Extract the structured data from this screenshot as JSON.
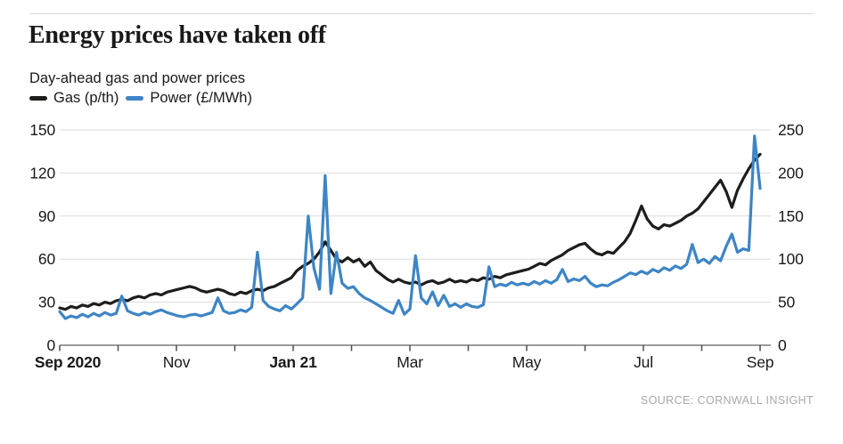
{
  "header": {
    "title": "Energy prices have taken off",
    "subtitle": "Day-ahead gas and power prices",
    "legend": [
      {
        "label": "Gas (p/th)",
        "color": "#1d1d1b"
      },
      {
        "label": "Power (£/MWh)",
        "color": "#3d85c6"
      }
    ]
  },
  "source": "SOURCE: CORNWALL INSIGHT",
  "chart_data": {
    "type": "line",
    "title": "Energy prices have taken off",
    "subtitle": "Day-ahead gas and power prices",
    "grid": "horizontal",
    "legend_position": "top-left",
    "x": {
      "n_months": 12,
      "range": [
        "Sep 2020",
        "Sep 2021"
      ],
      "tick_labels": [
        {
          "pos": 0,
          "label": "Sep 2020",
          "bold": true
        },
        {
          "pos": 2,
          "label": "Nov"
        },
        {
          "pos": 4,
          "label": "Jan 21",
          "bold": true
        },
        {
          "pos": 6,
          "label": "Mar"
        },
        {
          "pos": 8,
          "label": "May"
        },
        {
          "pos": 10,
          "label": "Jul"
        },
        {
          "pos": 12,
          "label": "Sep"
        }
      ]
    },
    "y_left": {
      "label": "Gas (p/th)",
      "ticks": [
        0,
        30,
        60,
        90,
        120,
        150
      ],
      "max": 150
    },
    "y_right": {
      "label": "Power (£/MWh)",
      "ticks": [
        0,
        50,
        100,
        150,
        200,
        250
      ],
      "max": 250
    },
    "series": [
      {
        "name": "Gas (p/th)",
        "axis": "left",
        "color": "#1d1d1b",
        "values": [
          26,
          25,
          27,
          26,
          28,
          27,
          29,
          28,
          30,
          29,
          31,
          32,
          31,
          33,
          34,
          33,
          35,
          36,
          35,
          37,
          38,
          39,
          40,
          41,
          40,
          38,
          37,
          38,
          39,
          38,
          36,
          35,
          37,
          36,
          38,
          39,
          38,
          40,
          41,
          43,
          45,
          47,
          52,
          55,
          57,
          60,
          65,
          72,
          66,
          60,
          58,
          61,
          58,
          60,
          55,
          58,
          52,
          49,
          46,
          44,
          46,
          44,
          43,
          44,
          42,
          44,
          45,
          43,
          44,
          46,
          44,
          45,
          44,
          46,
          45,
          47,
          46,
          48,
          47,
          49,
          50,
          51,
          52,
          53,
          55,
          57,
          56,
          59,
          61,
          63,
          66,
          68,
          70,
          71,
          67,
          64,
          63,
          65,
          64,
          68,
          72,
          78,
          87,
          97,
          88,
          83,
          81,
          84,
          83,
          85,
          87,
          90,
          92,
          95,
          100,
          105,
          110,
          115,
          107,
          96,
          108,
          116,
          123,
          129,
          133
        ]
      },
      {
        "name": "Power (£/MWh)",
        "axis": "right",
        "color": "#3d85c6",
        "values": [
          39,
          31,
          34,
          32,
          36,
          33,
          37,
          34,
          38,
          35,
          37,
          57,
          40,
          37,
          35,
          38,
          36,
          39,
          41,
          38,
          36,
          34,
          33,
          35,
          36,
          34,
          36,
          38,
          55,
          40,
          37,
          38,
          41,
          39,
          44,
          108,
          52,
          45,
          42,
          40,
          46,
          42,
          48,
          55,
          150,
          90,
          65,
          197,
          60,
          108,
          72,
          66,
          68,
          60,
          55,
          52,
          48,
          44,
          40,
          37,
          52,
          36,
          42,
          104,
          55,
          48,
          62,
          46,
          58,
          45,
          48,
          44,
          48,
          45,
          44,
          47,
          91,
          68,
          71,
          69,
          73,
          70,
          72,
          70,
          74,
          71,
          75,
          72,
          76,
          88,
          74,
          77,
          75,
          80,
          72,
          68,
          70,
          69,
          73,
          76,
          80,
          84,
          82,
          86,
          83,
          88,
          85,
          90,
          87,
          92,
          89,
          94,
          117,
          96,
          100,
          95,
          103,
          98,
          115,
          129,
          108,
          112,
          110,
          243,
          182
        ]
      }
    ]
  }
}
